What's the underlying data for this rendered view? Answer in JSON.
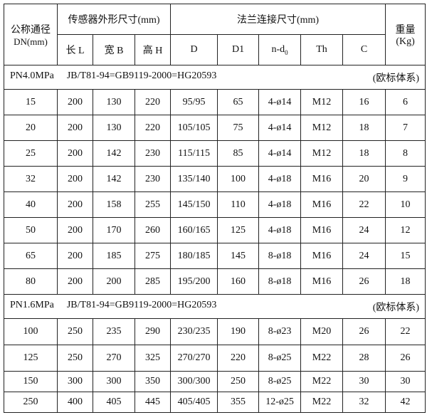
{
  "header": {
    "nominal_diameter": "公称通径",
    "nominal_unit": "DN(mm)",
    "sensor_dims": "传感器外形尺寸(mm)",
    "flange_dims": "法兰连接尺寸(mm)",
    "weight": "重量",
    "weight_unit": "(Kg)",
    "columns": [
      "长 L",
      "宽 B",
      "高 H",
      "D",
      "D1",
      "n-d",
      "Th",
      "C"
    ],
    "nd_subscript": "0"
  },
  "sections": [
    {
      "pressure": "PN4.0MPa",
      "standard": "JB/T81-94=GB9119-2000=HG20593",
      "system": "(欧标体系)",
      "rows": [
        [
          "15",
          "200",
          "130",
          "220",
          "95/95",
          "65",
          "4-ø14",
          "M12",
          "16",
          "6"
        ],
        [
          "20",
          "200",
          "130",
          "220",
          "105/105",
          "75",
          "4-ø14",
          "M12",
          "18",
          "7"
        ],
        [
          "25",
          "200",
          "142",
          "230",
          "115/115",
          "85",
          "4-ø14",
          "M12",
          "18",
          "8"
        ],
        [
          "32",
          "200",
          "142",
          "230",
          "135/140",
          "100",
          "4-ø18",
          "M16",
          "20",
          "9"
        ],
        [
          "40",
          "200",
          "158",
          "255",
          "145/150",
          "110",
          "4-ø18",
          "M16",
          "22",
          "10"
        ],
        [
          "50",
          "200",
          "170",
          "260",
          "160/165",
          "125",
          "4-ø18",
          "M16",
          "24",
          "12"
        ],
        [
          "65",
          "200",
          "185",
          "275",
          "180/185",
          "145",
          "8-ø18",
          "M16",
          "24",
          "15"
        ],
        [
          "80",
          "200",
          "200",
          "285",
          "195/200",
          "160",
          "8-ø18",
          "M16",
          "26",
          "18"
        ]
      ]
    },
    {
      "pressure": "PN1.6MPa",
      "standard": "JB/T81-94=GB9119-2000=HG20593",
      "system": "(欧标体系)",
      "rows": [
        [
          "100",
          "250",
          "235",
          "290",
          "230/235",
          "190",
          "8-ø23",
          "M20",
          "26",
          "22"
        ],
        [
          "125",
          "250",
          "270",
          "325",
          "270/270",
          "220",
          "8-ø25",
          "M22",
          "28",
          "26"
        ],
        [
          "150",
          "300",
          "300",
          "350",
          "300/300",
          "250",
          "8-ø25",
          "M22",
          "30",
          "30"
        ],
        [
          "250",
          "400",
          "405",
          "445",
          "405/405",
          "355",
          "12-ø25",
          "M22",
          "32",
          "42"
        ]
      ]
    }
  ]
}
